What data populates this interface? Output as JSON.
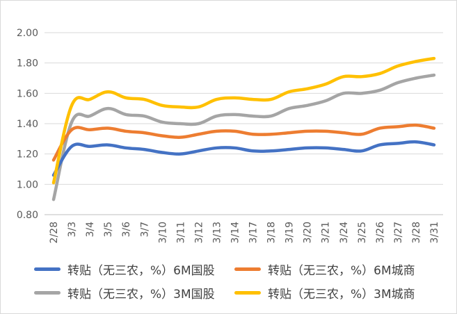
{
  "chart_data": {
    "type": "line",
    "title": "",
    "xlabel": "",
    "ylabel": "",
    "ylim": [
      0.8,
      2.0
    ],
    "yticks": [
      "0.80",
      "1.00",
      "1.20",
      "1.40",
      "1.60",
      "1.80",
      "2.00"
    ],
    "grid": true,
    "legend_position": "bottom",
    "categories": [
      "2/28",
      "3/3",
      "3/4",
      "3/5",
      "3/6",
      "3/7",
      "3/10",
      "3/11",
      "3/12",
      "3/13",
      "3/14",
      "3/17",
      "3/18",
      "3/19",
      "3/20",
      "3/21",
      "3/24",
      "3/25",
      "3/26",
      "3/27",
      "3/28",
      "3/31"
    ],
    "series": [
      {
        "name": "转贴（无三农，%）6M国股",
        "color": "#4472c4",
        "values": [
          1.06,
          1.25,
          1.25,
          1.26,
          1.24,
          1.23,
          1.21,
          1.2,
          1.22,
          1.24,
          1.24,
          1.22,
          1.22,
          1.23,
          1.24,
          1.24,
          1.23,
          1.22,
          1.26,
          1.27,
          1.28,
          1.26
        ]
      },
      {
        "name": "转贴（无三农，%）6M城商",
        "color": "#ed7d31",
        "values": [
          1.16,
          1.36,
          1.36,
          1.37,
          1.35,
          1.34,
          1.32,
          1.31,
          1.33,
          1.35,
          1.35,
          1.33,
          1.33,
          1.34,
          1.35,
          1.35,
          1.34,
          1.33,
          1.37,
          1.38,
          1.39,
          1.37
        ]
      },
      {
        "name": "转贴（无三农，%）3M国股",
        "color": "#a5a5a5",
        "values": [
          0.9,
          1.41,
          1.45,
          1.5,
          1.46,
          1.45,
          1.41,
          1.4,
          1.4,
          1.45,
          1.46,
          1.45,
          1.45,
          1.5,
          1.52,
          1.55,
          1.6,
          1.6,
          1.62,
          1.67,
          1.7,
          1.72
        ]
      },
      {
        "name": "转贴（无三农，%）3M城商",
        "color": "#ffc000",
        "values": [
          1.01,
          1.52,
          1.56,
          1.61,
          1.57,
          1.56,
          1.52,
          1.51,
          1.51,
          1.56,
          1.57,
          1.56,
          1.56,
          1.61,
          1.63,
          1.66,
          1.71,
          1.71,
          1.73,
          1.78,
          1.81,
          1.83
        ]
      }
    ]
  }
}
